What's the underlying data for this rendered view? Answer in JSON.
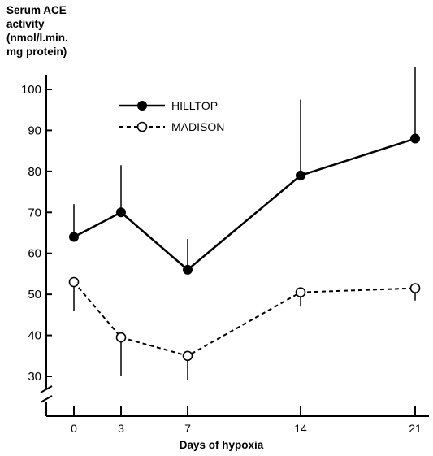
{
  "chart_data": {
    "type": "line",
    "title": "",
    "ylabel_lines": [
      "Serum ACE",
      "activity",
      "(nmol/l.min.",
      "mg protein)"
    ],
    "xlabel": "Days of hypoxia",
    "x": [
      0,
      3,
      7,
      14,
      21
    ],
    "x_tick_labels": [
      "0",
      "3",
      "7",
      "14",
      "21"
    ],
    "y_ticks": [
      30,
      40,
      50,
      60,
      70,
      80,
      90,
      100
    ],
    "y_tick_labels": [
      "30",
      "40",
      "50",
      "60",
      "70",
      "80",
      "90",
      "100"
    ],
    "ylim": [
      30,
      100
    ],
    "axis_break": true,
    "grid": false,
    "legend_position": "top-left",
    "series": [
      {
        "name": "HILLTOP",
        "marker": "filled-circle",
        "line_style": "solid",
        "values": [
          64,
          70,
          56,
          79,
          88
        ],
        "error_upper": [
          72,
          81.5,
          63.5,
          97.5,
          105.5
        ]
      },
      {
        "name": "MADISON",
        "marker": "open-circle",
        "line_style": "dashed",
        "values": [
          53,
          39.5,
          35,
          50.5,
          51.5
        ],
        "error_lower": [
          46,
          30,
          29,
          47,
          48.5
        ]
      }
    ],
    "colors": {
      "ink": "#000000",
      "background": "#ffffff"
    }
  }
}
